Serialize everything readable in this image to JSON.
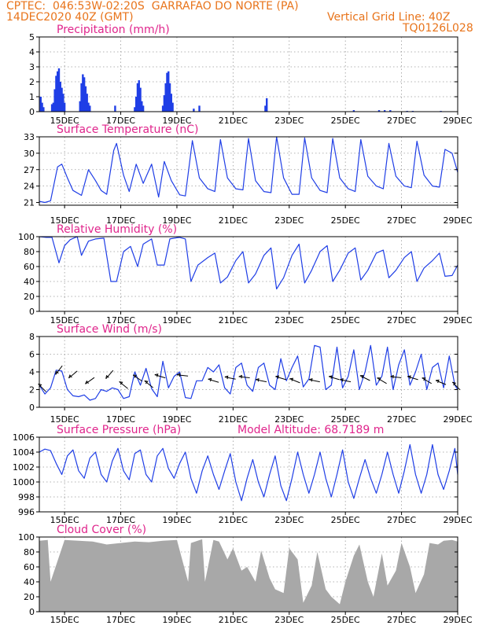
{
  "header": {
    "line1": "CPTEC:  046:53W-02:20S  GARRAFAO DO NORTE (PA)",
    "line2": "14DEC2020 40Z (GMT)",
    "grid_line": "Vertical Grid Line: 40Z",
    "code": "TQ0126L028"
  },
  "colors": {
    "header": "#e8741b",
    "title": "#e0258c",
    "series": "#1f3ee6",
    "cloud": "#a8a8a8",
    "grid": "#9a9a9a"
  },
  "x_axis_ticks": [
    "15DEC",
    "17DEC",
    "19DEC",
    "21DEC",
    "23DEC",
    "25DEC",
    "27DEC",
    "29DEC"
  ],
  "chart_data": [
    {
      "type": "bar",
      "title": "Precipitation (mm/h)",
      "yticks": [
        0,
        1,
        2,
        3,
        4,
        5
      ],
      "ylim": [
        0,
        5
      ],
      "x_range_days": [
        14.1,
        29.0
      ],
      "points": [
        [
          14.15,
          1.0
        ],
        [
          14.2,
          0.6
        ],
        [
          14.25,
          0.3
        ],
        [
          14.55,
          0.5
        ],
        [
          14.6,
          0.6
        ],
        [
          14.65,
          1.5
        ],
        [
          14.7,
          2.4
        ],
        [
          14.75,
          2.7
        ],
        [
          14.8,
          2.9
        ],
        [
          14.85,
          2.0
        ],
        [
          14.9,
          1.6
        ],
        [
          14.95,
          1.2
        ],
        [
          15.0,
          0.6
        ],
        [
          15.55,
          0.7
        ],
        [
          15.6,
          1.9
        ],
        [
          15.65,
          2.5
        ],
        [
          15.7,
          2.3
        ],
        [
          15.75,
          1.7
        ],
        [
          15.8,
          1.2
        ],
        [
          15.85,
          0.6
        ],
        [
          15.9,
          0.4
        ],
        [
          16.8,
          0.4
        ],
        [
          17.5,
          0.3
        ],
        [
          17.55,
          1.0
        ],
        [
          17.6,
          1.9
        ],
        [
          17.65,
          2.1
        ],
        [
          17.7,
          1.6
        ],
        [
          17.75,
          0.7
        ],
        [
          17.8,
          0.4
        ],
        [
          18.5,
          0.4
        ],
        [
          18.55,
          1.1
        ],
        [
          18.6,
          1.9
        ],
        [
          18.65,
          2.6
        ],
        [
          18.7,
          2.7
        ],
        [
          18.75,
          1.9
        ],
        [
          18.8,
          1.2
        ],
        [
          18.85,
          0.6
        ],
        [
          19.6,
          0.2
        ],
        [
          19.8,
          0.4
        ],
        [
          22.15,
          0.4
        ],
        [
          22.2,
          0.9
        ],
        [
          25.3,
          0.1
        ],
        [
          26.2,
          0.1
        ],
        [
          26.4,
          0.1
        ],
        [
          26.6,
          0.1
        ],
        [
          27.2,
          0.05
        ],
        [
          27.4,
          0.05
        ],
        [
          28.4,
          0.05
        ]
      ]
    },
    {
      "type": "line",
      "title": "Surface Temperature (nC)",
      "yticks": [
        21,
        24,
        27,
        30,
        33
      ],
      "ylim": [
        20.5,
        33
      ],
      "x": [
        14.1,
        14.3,
        14.5,
        14.75,
        14.9,
        15.1,
        15.3,
        15.6,
        15.85,
        16.1,
        16.3,
        16.5,
        16.75,
        16.85,
        17.1,
        17.3,
        17.55,
        17.8,
        18.1,
        18.35,
        18.55,
        18.8,
        19.1,
        19.3,
        19.55,
        19.8,
        20.1,
        20.35,
        20.55,
        20.8,
        21.1,
        21.35,
        21.55,
        21.8,
        22.1,
        22.35,
        22.55,
        22.8,
        23.1,
        23.35,
        23.55,
        23.8,
        24.1,
        24.35,
        24.55,
        24.8,
        25.1,
        25.35,
        25.55,
        25.8,
        26.1,
        26.35,
        26.55,
        26.8,
        27.1,
        27.35,
        27.55,
        27.8,
        28.1,
        28.35,
        28.55,
        28.8,
        29.0
      ],
      "y": [
        21.2,
        21.0,
        21.3,
        27.5,
        28.0,
        25.5,
        23.2,
        22.3,
        27.0,
        25.0,
        23.2,
        22.5,
        30.5,
        31.8,
        26.0,
        23.0,
        28.0,
        24.5,
        28.0,
        22.0,
        28.5,
        25.0,
        22.4,
        22.2,
        32.3,
        25.5,
        23.5,
        23.0,
        32.5,
        25.5,
        23.5,
        23.3,
        32.7,
        25.0,
        23.0,
        22.8,
        33.0,
        25.5,
        22.5,
        22.5,
        32.8,
        25.5,
        23.2,
        22.8,
        32.7,
        25.5,
        23.5,
        23.0,
        32.5,
        25.8,
        24.0,
        23.5,
        31.8,
        25.8,
        24.0,
        23.7,
        32.2,
        26.0,
        24.0,
        23.8,
        30.7,
        30.0,
        26.5
      ]
    },
    {
      "type": "line",
      "title": "Relative Humidity (%)",
      "yticks": [
        0,
        20,
        40,
        60,
        80,
        100
      ],
      "ylim": [
        0,
        100
      ],
      "x": [
        14.1,
        14.35,
        14.55,
        14.8,
        15.0,
        15.2,
        15.45,
        15.6,
        15.85,
        16.1,
        16.4,
        16.65,
        16.85,
        17.1,
        17.35,
        17.6,
        17.8,
        18.1,
        18.3,
        18.55,
        18.75,
        18.9,
        19.1,
        19.3,
        19.5,
        19.75,
        20.1,
        20.35,
        20.55,
        20.8,
        21.1,
        21.35,
        21.55,
        21.8,
        22.1,
        22.35,
        22.55,
        22.8,
        23.1,
        23.35,
        23.55,
        23.8,
        24.1,
        24.35,
        24.55,
        24.8,
        25.1,
        25.35,
        25.55,
        25.8,
        26.1,
        26.35,
        26.55,
        26.8,
        27.1,
        27.35,
        27.55,
        27.8,
        28.1,
        28.35,
        28.55,
        28.8,
        29.0
      ],
      "y": [
        100,
        99,
        99,
        65,
        88,
        96,
        100,
        75,
        94,
        97,
        98,
        40,
        40,
        80,
        87,
        60,
        90,
        97,
        62,
        62,
        97,
        98,
        99,
        97,
        40,
        62,
        72,
        78,
        38,
        46,
        68,
        80,
        38,
        50,
        75,
        85,
        30,
        45,
        75,
        90,
        38,
        55,
        80,
        88,
        40,
        55,
        78,
        85,
        42,
        55,
        78,
        82,
        45,
        55,
        72,
        80,
        40,
        58,
        68,
        78,
        47,
        48,
        62
      ]
    },
    {
      "type": "line",
      "title": "Surface Wind (m/s)",
      "yticks": [
        0,
        2,
        4,
        6,
        8
      ],
      "ylim": [
        0,
        8
      ],
      "x": [
        14.1,
        14.3,
        14.5,
        14.7,
        14.9,
        15.1,
        15.3,
        15.5,
        15.7,
        15.9,
        16.1,
        16.3,
        16.5,
        16.7,
        16.9,
        17.1,
        17.3,
        17.5,
        17.7,
        17.9,
        18.1,
        18.3,
        18.5,
        18.7,
        18.9,
        19.1,
        19.3,
        19.5,
        19.7,
        19.9,
        20.1,
        20.3,
        20.5,
        20.7,
        20.9,
        21.1,
        21.3,
        21.5,
        21.7,
        21.9,
        22.1,
        22.3,
        22.5,
        22.7,
        22.9,
        23.1,
        23.3,
        23.5,
        23.7,
        23.9,
        24.1,
        24.3,
        24.5,
        24.7,
        24.9,
        25.1,
        25.3,
        25.5,
        25.7,
        25.9,
        26.1,
        26.3,
        26.5,
        26.7,
        26.9,
        27.1,
        27.3,
        27.5,
        27.7,
        27.9,
        28.1,
        28.3,
        28.5,
        28.7,
        28.9,
        29.0
      ],
      "y": [
        2.5,
        1.5,
        2.2,
        4.2,
        4.1,
        2.0,
        1.3,
        1.2,
        1.4,
        0.8,
        1.0,
        2.0,
        1.8,
        2.2,
        2.0,
        1.0,
        1.2,
        4.0,
        2.5,
        4.4,
        2.1,
        1.2,
        5.2,
        2.2,
        3.5,
        4.0,
        1.1,
        1.0,
        3.0,
        3.0,
        4.5,
        4.0,
        4.8,
        2.2,
        1.5,
        4.5,
        5.0,
        2.5,
        1.8,
        4.5,
        5.0,
        2.5,
        2.0,
        5.5,
        3.0,
        4.5,
        5.8,
        2.3,
        3.2,
        7.0,
        6.8,
        2.0,
        2.5,
        6.8,
        2.2,
        3.5,
        6.5,
        2.0,
        4.0,
        7.0,
        2.5,
        3.5,
        6.8,
        2.0,
        4.8,
        6.5,
        2.5,
        4.0,
        6.0,
        2.0,
        4.5,
        5.0,
        2.2,
        5.8,
        2.5,
        2.0
      ],
      "wind_vectors": [
        {
          "day": 14.2,
          "speed": 2.2,
          "dx": 1.0,
          "dy": 1.0
        },
        {
          "day": 14.8,
          "speed": 4.2,
          "dx": 0.6,
          "dy": -0.8
        },
        {
          "day": 15.3,
          "speed": 3.7,
          "dx": 0.6,
          "dy": -0.5
        },
        {
          "day": 15.9,
          "speed": 3.0,
          "dx": 0.7,
          "dy": -0.5
        },
        {
          "day": 16.6,
          "speed": 3.7,
          "dx": 0.6,
          "dy": -0.7
        },
        {
          "day": 17.1,
          "speed": 2.5,
          "dx": 1.0,
          "dy": 0.8
        },
        {
          "day": 17.6,
          "speed": 3.3,
          "dx": 0.9,
          "dy": 0.6
        },
        {
          "day": 18.0,
          "speed": 2.6,
          "dx": 1.0,
          "dy": 0.8
        },
        {
          "day": 18.4,
          "speed": 3.5,
          "dx": 1.0,
          "dy": 0.3
        },
        {
          "day": 19.2,
          "speed": 3.6,
          "dx": 1.0,
          "dy": 0.1
        },
        {
          "day": 20.3,
          "speed": 3.0,
          "dx": 1.0,
          "dy": 0.3
        },
        {
          "day": 20.9,
          "speed": 3.3,
          "dx": 1.0,
          "dy": 0.2
        },
        {
          "day": 21.4,
          "speed": 3.4,
          "dx": 1.0,
          "dy": 0.1
        },
        {
          "day": 22.0,
          "speed": 3.0,
          "dx": 1.0,
          "dy": 0.2
        },
        {
          "day": 22.7,
          "speed": 3.3,
          "dx": 1.0,
          "dy": 0.3
        },
        {
          "day": 23.2,
          "speed": 3.0,
          "dx": 1.0,
          "dy": 0.4
        },
        {
          "day": 23.9,
          "speed": 3.0,
          "dx": 1.0,
          "dy": 0.2
        },
        {
          "day": 24.6,
          "speed": 3.3,
          "dx": 1.0,
          "dy": 0.3
        },
        {
          "day": 25.0,
          "speed": 3.0,
          "dx": 1.0,
          "dy": 0.2
        },
        {
          "day": 25.7,
          "speed": 3.3,
          "dx": 1.0,
          "dy": 0.5
        },
        {
          "day": 26.3,
          "speed": 3.0,
          "dx": 1.0,
          "dy": 0.6
        },
        {
          "day": 26.8,
          "speed": 3.4,
          "dx": 1.0,
          "dy": 0.1
        },
        {
          "day": 27.4,
          "speed": 3.3,
          "dx": 1.0,
          "dy": 0.3
        },
        {
          "day": 27.9,
          "speed": 3.0,
          "dx": 1.0,
          "dy": 0.6
        },
        {
          "day": 28.4,
          "speed": 2.8,
          "dx": 1.0,
          "dy": 0.4
        },
        {
          "day": 28.95,
          "speed": 2.4,
          "dx": 1.0,
          "dy": 1.0
        }
      ]
    },
    {
      "type": "line",
      "title": "Surface Pressure (hPa)",
      "annotation": "Model Altitude: 68.7189 m",
      "yticks": [
        996,
        998,
        1000,
        1002,
        1004,
        1006
      ],
      "ylim": [
        996,
        1006
      ],
      "x": [
        14.1,
        14.3,
        14.5,
        14.7,
        14.9,
        15.1,
        15.3,
        15.5,
        15.7,
        15.9,
        16.1,
        16.3,
        16.5,
        16.7,
        16.9,
        17.1,
        17.3,
        17.5,
        17.7,
        17.9,
        18.1,
        18.3,
        18.5,
        18.7,
        18.9,
        19.1,
        19.3,
        19.5,
        19.7,
        19.9,
        20.1,
        20.3,
        20.5,
        20.7,
        20.9,
        21.1,
        21.3,
        21.5,
        21.7,
        21.9,
        22.1,
        22.3,
        22.5,
        22.7,
        22.9,
        23.1,
        23.3,
        23.5,
        23.7,
        23.9,
        24.1,
        24.3,
        24.5,
        24.7,
        24.9,
        25.1,
        25.3,
        25.5,
        25.7,
        25.9,
        26.1,
        26.3,
        26.5,
        26.7,
        26.9,
        27.1,
        27.3,
        27.5,
        27.7,
        27.9,
        28.1,
        28.3,
        28.5,
        28.7,
        28.9,
        29.0
      ],
      "y": [
        1004.0,
        1004.4,
        1004.2,
        1002.5,
        1001.0,
        1003.5,
        1004.3,
        1001.5,
        1000.5,
        1003.2,
        1004.0,
        1001.0,
        1000.0,
        1002.8,
        1004.5,
        1001.5,
        1000.3,
        1003.8,
        1004.3,
        1001.0,
        1000.0,
        1003.5,
        1004.5,
        1001.8,
        1000.5,
        1002.5,
        1004.0,
        1000.5,
        998.5,
        1001.5,
        1003.5,
        1001.0,
        999.0,
        1001.5,
        1003.8,
        1000.0,
        997.5,
        1000.5,
        1003.0,
        1000.0,
        998.0,
        1001.0,
        1003.5,
        999.5,
        997.5,
        1000.5,
        1004.0,
        1001.0,
        998.5,
        1001.0,
        1004.0,
        1000.5,
        998.0,
        1001.0,
        1004.3,
        1000.0,
        997.8,
        1000.5,
        1003.0,
        1000.5,
        998.5,
        1001.0,
        1004.0,
        1001.0,
        998.5,
        1001.5,
        1005.0,
        1001.0,
        998.5,
        1001.0,
        1005.0,
        1001.0,
        999.0,
        1001.5,
        1004.5,
        1001.0
      ]
    },
    {
      "type": "area",
      "title": "Cloud Cover (%)",
      "yticks": [
        0,
        20,
        40,
        60,
        80,
        100
      ],
      "ylim": [
        0,
        100
      ],
      "x": [
        14.1,
        14.4,
        14.5,
        15.0,
        15.5,
        16.0,
        16.5,
        17.0,
        17.5,
        18.0,
        18.5,
        19.0,
        19.4,
        19.5,
        19.9,
        20.0,
        20.3,
        20.5,
        20.8,
        21.0,
        21.3,
        21.5,
        21.8,
        22.0,
        22.3,
        22.5,
        22.8,
        23.0,
        23.3,
        23.5,
        23.8,
        24.0,
        24.3,
        24.5,
        24.8,
        25.0,
        25.3,
        25.5,
        25.8,
        26.0,
        26.3,
        26.5,
        26.8,
        27.0,
        27.3,
        27.5,
        27.8,
        28.0,
        28.3,
        28.5,
        28.8,
        29.0
      ],
      "y": [
        95,
        96,
        40,
        96,
        95,
        94,
        90,
        92,
        94,
        93,
        95,
        96,
        40,
        92,
        97,
        40,
        96,
        94,
        70,
        85,
        55,
        60,
        40,
        82,
        45,
        30,
        25,
        85,
        70,
        12,
        35,
        80,
        30,
        20,
        10,
        40,
        75,
        90,
        40,
        20,
        78,
        35,
        55,
        92,
        60,
        25,
        50,
        92,
        90,
        95,
        96,
        94
      ]
    }
  ]
}
